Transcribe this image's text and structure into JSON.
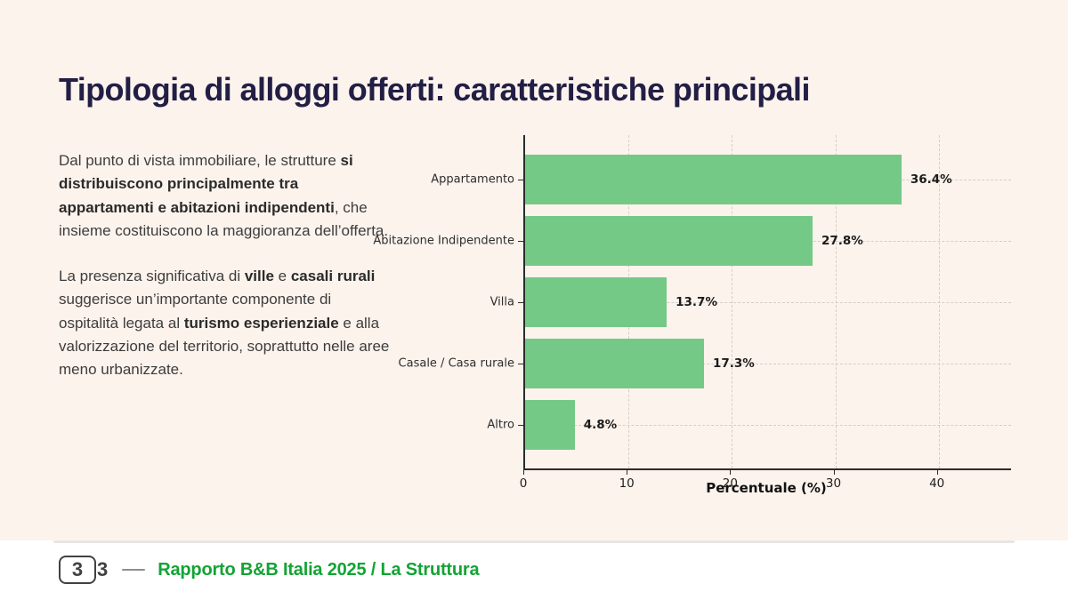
{
  "slide": {
    "title": "Tipologia di alloggi offerti: caratteristiche principali",
    "background_color": "#fcf3ec",
    "title_color": "#221e45"
  },
  "body": {
    "paragraphs": [
      {
        "segments": [
          {
            "text": "Dal punto di vista immobiliare, le strutture ",
            "bold": false
          },
          {
            "text": "si distribuiscono principalmente tra appartamenti e abitazioni indipendenti",
            "bold": true
          },
          {
            "text": ", che insieme costituiscono la maggioranza dell’offerta.",
            "bold": false
          }
        ]
      },
      {
        "segments": [
          {
            "text": "La presenza significativa di ",
            "bold": false
          },
          {
            "text": "ville",
            "bold": true
          },
          {
            "text": " e ",
            "bold": false
          },
          {
            "text": "casali rurali",
            "bold": true
          },
          {
            "text": " suggerisce un’importante componente di ospitalità legata al ",
            "bold": false
          },
          {
            "text": "turismo esperienziale",
            "bold": true
          },
          {
            "text": " e alla valorizzazione del territorio, soprattutto nelle aree meno urbanizzate.",
            "bold": false
          }
        ]
      }
    ]
  },
  "chart_data": {
    "type": "bar",
    "orientation": "horizontal",
    "title": "",
    "categories": [
      "Appartamento",
      "Abitazione Indipendente",
      "Villa",
      "Casale / Casa rurale",
      "Altro"
    ],
    "values": [
      36.4,
      27.8,
      13.7,
      17.3,
      4.8
    ],
    "value_labels": [
      "36.4%",
      "27.8%",
      "13.7%",
      "17.3%",
      "4.8%"
    ],
    "xlabel": "Percentuale (%)",
    "ylabel": "",
    "x_ticks": [
      0,
      10,
      20,
      30,
      40
    ],
    "xlim": [
      0,
      47
    ],
    "grid": true,
    "grid_style": "dashed",
    "legend": false,
    "bar_color": "#74c987",
    "axis_color": "#2b2b2b"
  },
  "footer": {
    "logo_glyph_boxed": "3",
    "logo_glyph_outside": "3",
    "report_label": "Rapporto B&B Italia 2025 /",
    "section_label": " La Struttura",
    "accent_color": "#12a434"
  }
}
